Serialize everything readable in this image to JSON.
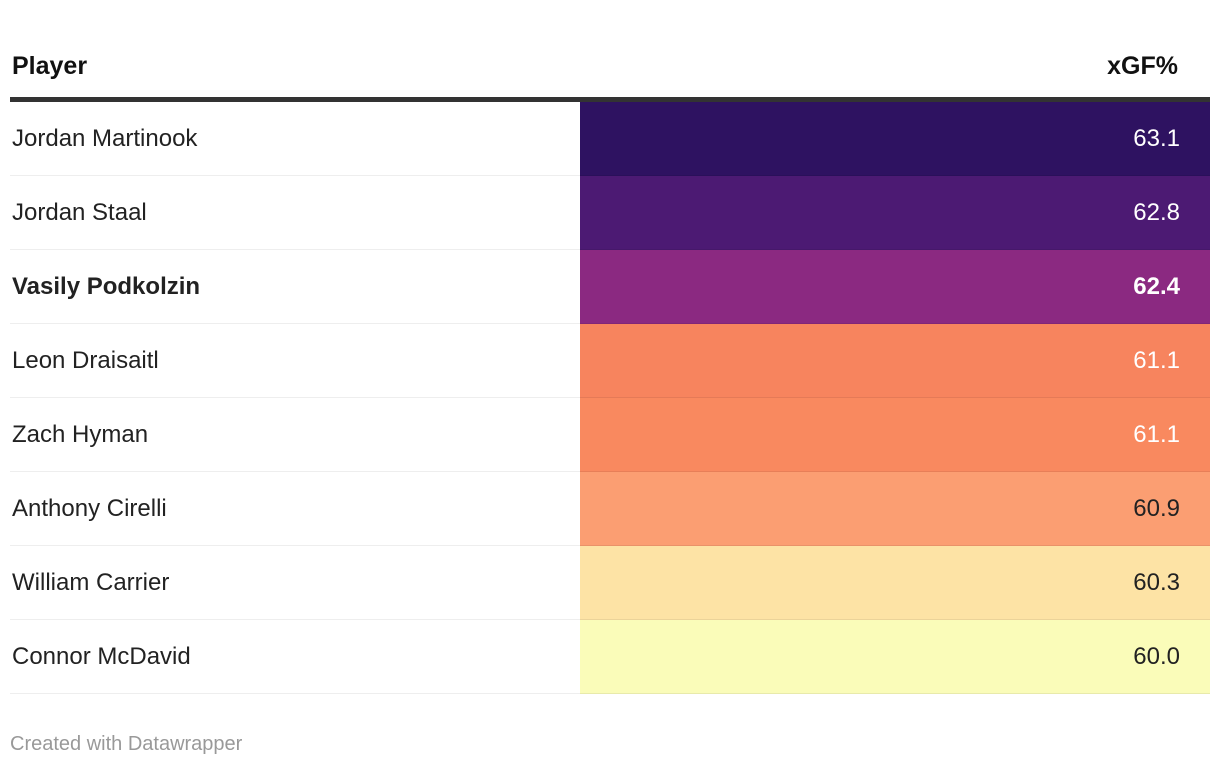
{
  "table": {
    "columns": [
      {
        "label": "Player"
      },
      {
        "label": "xGF%"
      }
    ],
    "rows": [
      {
        "player": "Jordan Martinook",
        "value": "63.1",
        "bg": "#2e1261",
        "text_color": "#ffffff",
        "bold": false
      },
      {
        "player": "Jordan Staal",
        "value": "62.8",
        "bg": "#4c1a73",
        "text_color": "#ffffff",
        "bold": false
      },
      {
        "player": "Vasily Podkolzin",
        "value": "62.4",
        "bg": "#8b2981",
        "text_color": "#ffffff",
        "bold": true
      },
      {
        "player": "Leon Draisaitl",
        "value": "61.1",
        "bg": "#f7845e",
        "text_color": "#ffffff",
        "bold": false
      },
      {
        "player": "Zach Hyman",
        "value": "61.1",
        "bg": "#f9895f",
        "text_color": "#ffffff",
        "bold": false
      },
      {
        "player": "Anthony Cirelli",
        "value": "60.9",
        "bg": "#fb9e72",
        "text_color": "#222222",
        "bold": false
      },
      {
        "player": "William Carrier",
        "value": "60.3",
        "bg": "#fde3a5",
        "text_color": "#222222",
        "bold": false
      },
      {
        "player": "Connor McDavid",
        "value": "60.0",
        "bg": "#fafcb9",
        "text_color": "#222222",
        "bold": false
      }
    ],
    "header_border_color": "#333333"
  },
  "footer": {
    "credit": "Created with Datawrapper"
  },
  "chart_data": {
    "type": "table",
    "title": "",
    "columns": [
      "Player",
      "xGF%"
    ],
    "rows": [
      [
        "Jordan Martinook",
        63.1
      ],
      [
        "Jordan Staal",
        62.8
      ],
      [
        "Vasily Podkolzin",
        62.4
      ],
      [
        "Leon Draisaitl",
        61.1
      ],
      [
        "Zach Hyman",
        61.1
      ],
      [
        "Anthony Cirelli",
        60.9
      ],
      [
        "William Carrier",
        60.3
      ],
      [
        "Connor McDavid",
        60.0
      ]
    ],
    "highlighted_row": "Vasily Podkolzin",
    "value_range_shown": [
      60.0,
      63.1
    ],
    "color_scale": "magma-reversed heatmap: high values dark purple #2e1261, low values pale yellow #fafcb9",
    "cell_colors": [
      "#2e1261",
      "#4c1a73",
      "#8b2981",
      "#f7845e",
      "#f9895f",
      "#fb9e72",
      "#fde3a5",
      "#fafcb9"
    ],
    "legend_position": "none",
    "grid": false
  }
}
